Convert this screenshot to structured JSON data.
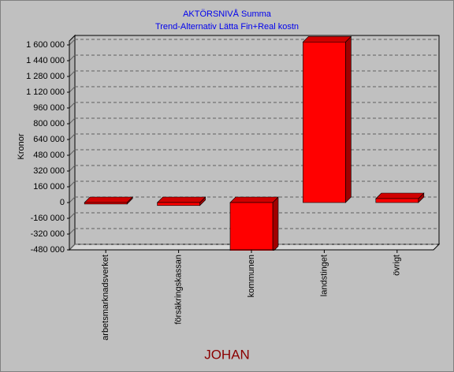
{
  "chart_data": {
    "type": "bar3d",
    "title": "AKTÖRSNIVÅ  Summa",
    "subtitle": "Trend-Alternativ Lätta Fin+Real kostn",
    "y_label": "Kronor",
    "footer": "JOHAN",
    "categories": [
      "arbetsmarknadsverket",
      "försäkringskassan",
      "kommunen",
      "landstinget",
      "övrigt"
    ],
    "values": [
      -15000,
      -30000,
      -500000,
      1630000,
      40000
    ],
    "color": "#ff0000",
    "ylim": [
      -480000,
      1640000
    ],
    "yticks": [
      {
        "value": -480000,
        "label": "-480 000"
      },
      {
        "value": -320000,
        "label": "-320 000"
      },
      {
        "value": -160000,
        "label": "-160 000"
      },
      0,
      {
        "value": 160000,
        "label": "160 000"
      },
      {
        "value": 320000,
        "label": "320 000"
      },
      {
        "value": 480000,
        "label": "480 000"
      },
      {
        "value": 640000,
        "label": "640 000"
      },
      {
        "value": 800000,
        "label": "800 000"
      },
      {
        "value": 960000,
        "label": "960 000"
      },
      {
        "value": 1120000,
        "label": "1 120 000"
      },
      {
        "value": 1280000,
        "label": "1 280 000"
      },
      {
        "value": 1440000,
        "label": "1 440 000"
      },
      {
        "value": 1600000,
        "label": "1 600 000"
      }
    ],
    "grid": true
  }
}
